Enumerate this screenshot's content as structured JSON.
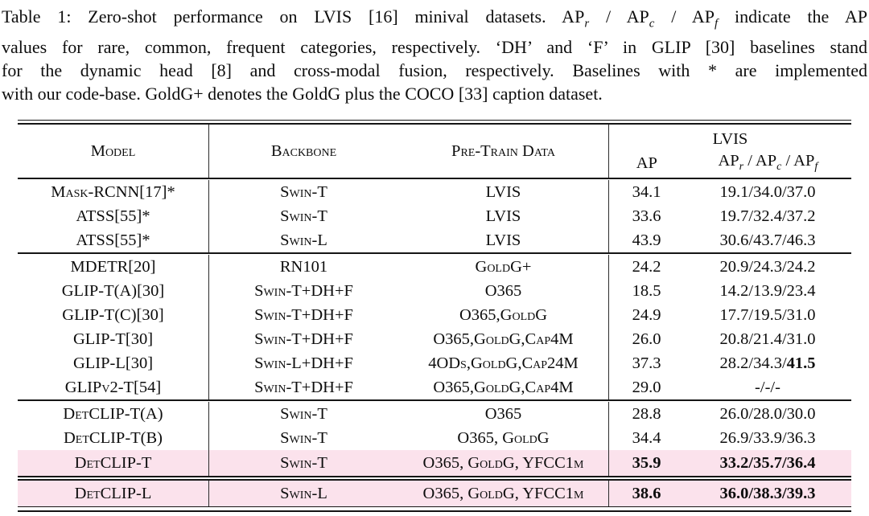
{
  "caption": {
    "line1_pre": "Table 1: Zero-shot performance on LVIS [16] minival datasets. AP",
    "sub_r": "r",
    "line1_mid1": " / AP",
    "sub_c": "c",
    "line1_mid2": " / AP",
    "sub_f": "f",
    "line1_post": " indicate the AP",
    "line2": "values for rare, common, frequent categories, respectively. ‘DH’ and ‘F’ in GLIP [30] baselines stand",
    "line3": "for the dynamic head [8] and cross-modal fusion, respectively. Baselines with * are implemented",
    "line4": "with our code-base. GoldG+ denotes the GoldG plus the COCO [33] caption dataset."
  },
  "table": {
    "highlight_color": "#fbe2ec",
    "rule_color": "#151515",
    "sep": " / ",
    "header": {
      "model": "Model",
      "backbone": "Backbone",
      "pretrain": "Pre-Train Data",
      "lvis": "LVIS",
      "ap": "AP",
      "ap_base": "AP",
      "sub_r": "r",
      "sub_c": "c",
      "sub_f": "f"
    },
    "groups": [
      {
        "rows": [
          {
            "model": "Mask-RCNN[17]*",
            "backbone": "Swin-T",
            "pretrain": "LVIS",
            "ap": "34.1",
            "r": "19.1",
            "c": "34.0",
            "f": "37.0"
          },
          {
            "model": "ATSS[55]*",
            "backbone": "Swin-T",
            "pretrain": "LVIS",
            "ap": "33.6",
            "r": "19.7",
            "c": "32.4",
            "f": "37.2"
          },
          {
            "model": "ATSS[55]*",
            "backbone": "Swin-L",
            "pretrain": "LVIS",
            "ap": "43.9",
            "r": "30.6",
            "c": "43.7",
            "f": "46.3"
          }
        ]
      },
      {
        "rows": [
          {
            "model": "MDETR[20]",
            "backbone": "RN101",
            "pretrain": "GoldG+",
            "ap": "24.2",
            "r": "20.9",
            "c": "24.3",
            "f": "24.2"
          },
          {
            "model": "GLIP-T(A)[30]",
            "backbone": "Swin-T+DH+F",
            "pretrain": "O365",
            "ap": "18.5",
            "r": "14.2",
            "c": "13.9",
            "f": "23.4"
          },
          {
            "model": "GLIP-T(C)[30]",
            "backbone": "Swin-T+DH+F",
            "pretrain": "O365,GoldG",
            "ap": "24.9",
            "r": "17.7",
            "c": "19.5",
            "f": "31.0"
          },
          {
            "model": "GLIP-T[30]",
            "backbone": "Swin-T+DH+F",
            "pretrain": "O365,GoldG,Cap4M",
            "ap": "26.0",
            "r": "20.8",
            "c": "21.4",
            "f": "31.0"
          },
          {
            "model": "GLIP-L[30]",
            "backbone": "Swin-L+DH+F",
            "pretrain": "4ODs,GoldG,Cap24M",
            "ap": "37.3",
            "r": "28.2",
            "c": "34.3",
            "f": "41.5"
          },
          {
            "model": "GLIPv2-T[54]",
            "backbone": "Swin-T+DH+F",
            "pretrain": "O365,GoldG,Cap4M",
            "ap": "29.0",
            "r": "-",
            "c": "-",
            "f": "-"
          }
        ]
      },
      {
        "rows": [
          {
            "model": "DetCLIP-T(A)",
            "backbone": "Swin-T",
            "pretrain": "O365",
            "ap": "28.8",
            "r": "26.0",
            "c": "28.0",
            "f": "30.0"
          },
          {
            "model": "DetCLIP-T(B)",
            "backbone": "Swin-T",
            "pretrain": "O365, GoldG",
            "ap": "34.4",
            "r": "26.9",
            "c": "33.9",
            "f": "36.3"
          },
          {
            "model": "DetCLIP-T",
            "backbone": "Swin-T",
            "pretrain": "O365, GoldG, YFCC1m",
            "ap": "35.9",
            "r": "33.2",
            "c": "35.7",
            "f": "36.4"
          }
        ]
      },
      {
        "rows": [
          {
            "model": "DetCLIP-L",
            "backbone": "Swin-L",
            "pretrain": "O365, GoldG, YFCC1m",
            "ap": "38.6",
            "r": "36.0",
            "c": "38.3",
            "f": "39.3"
          }
        ]
      }
    ]
  }
}
